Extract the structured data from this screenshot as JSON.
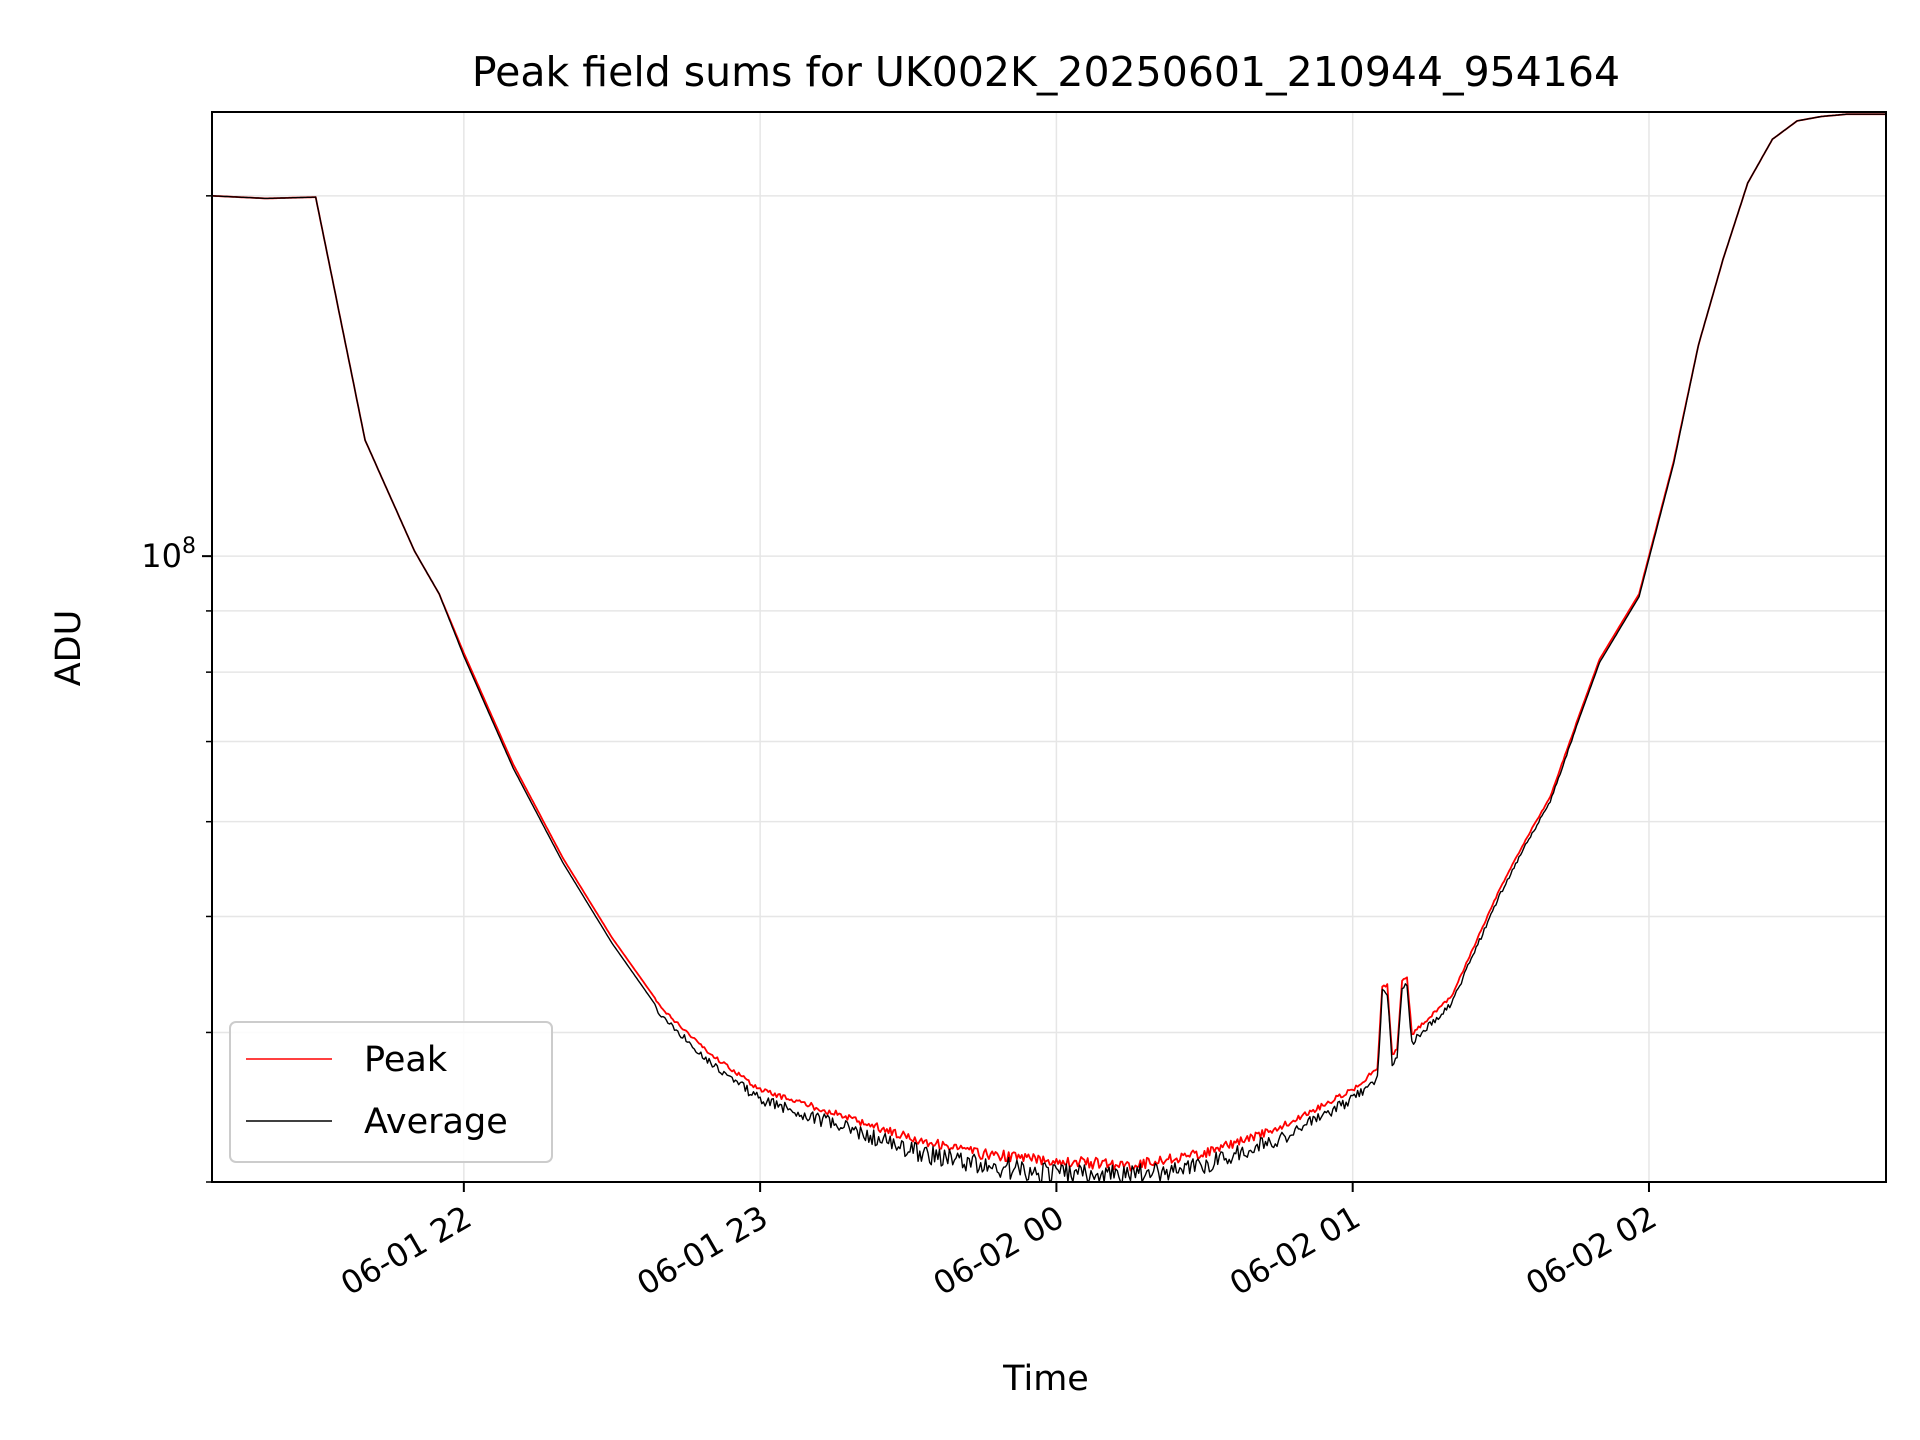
{
  "chart_data": {
    "type": "line",
    "title": "Peak field sums for UK002K_20250601_210944_954164",
    "xlabel": "Time",
    "ylabel": "ADU",
    "yscale": "log",
    "grid": true,
    "legend_position": "lower-left",
    "xlim": [
      "2025-06-01 21:09",
      "2025-06-02 02:48"
    ],
    "ylim": [
      30000000,
      235000000
    ],
    "x_ticks": [
      {
        "value": "2025-06-01 22:00",
        "label": "06-01 22"
      },
      {
        "value": "2025-06-01 23:00",
        "label": "06-01 23"
      },
      {
        "value": "2025-06-02 00:00",
        "label": "06-02 00"
      },
      {
        "value": "2025-06-02 01:00",
        "label": "06-02 01"
      },
      {
        "value": "2025-06-02 02:00",
        "label": "06-02 02"
      }
    ],
    "y_major_ticks": [
      {
        "value": 100000000,
        "base": "10",
        "exponent": "8"
      }
    ],
    "y_minor_ticks": [
      30000000,
      40000000,
      50000000,
      60000000,
      70000000,
      80000000,
      90000000,
      200000000
    ],
    "series": [
      {
        "name": "Peak",
        "color": "#ff0000",
        "x": [
          "2025-06-01 21:09",
          "2025-06-01 21:20",
          "2025-06-01 21:30",
          "2025-06-01 21:40",
          "2025-06-01 21:50",
          "2025-06-01 21:55",
          "2025-06-01 22:00",
          "2025-06-01 22:10",
          "2025-06-01 22:20",
          "2025-06-01 22:30",
          "2025-06-01 22:40",
          "2025-06-01 22:50",
          "2025-06-01 23:00",
          "2025-06-01 23:15",
          "2025-06-01 23:30",
          "2025-06-01 23:45",
          "2025-06-02 00:00",
          "2025-06-02 00:15",
          "2025-06-02 00:30",
          "2025-06-02 00:45",
          "2025-06-02 01:00",
          "2025-06-02 01:05",
          "2025-06-02 01:06",
          "2025-06-02 01:07",
          "2025-06-02 01:08",
          "2025-06-02 01:09",
          "2025-06-02 01:10",
          "2025-06-02 01:11",
          "2025-06-02 01:12",
          "2025-06-02 01:20",
          "2025-06-02 01:30",
          "2025-06-02 01:35",
          "2025-06-02 01:40",
          "2025-06-02 01:45",
          "2025-06-02 01:50",
          "2025-06-02 01:58",
          "2025-06-02 02:05",
          "2025-06-02 02:10",
          "2025-06-02 02:15",
          "2025-06-02 02:20",
          "2025-06-02 02:25",
          "2025-06-02 02:30",
          "2025-06-02 02:35",
          "2025-06-02 02:40",
          "2025-06-02 02:48"
        ],
        "values": [
          200000000,
          199000000,
          199500000,
          125000000,
          101000000,
          93000000,
          83000000,
          67000000,
          56000000,
          48000000,
          42000000,
          38500000,
          36000000,
          34500000,
          33000000,
          32000000,
          31600000,
          31300000,
          32000000,
          33500000,
          36000000,
          37500000,
          44000000,
          44000000,
          38500000,
          38800000,
          44500000,
          44500000,
          40000000,
          43000000,
          53000000,
          58000000,
          63000000,
          72000000,
          82000000,
          93000000,
          120000000,
          150000000,
          177000000,
          205000000,
          223000000,
          231000000,
          233000000,
          234000000,
          234000000
        ]
      },
      {
        "name": "Average",
        "color": "#000000",
        "x": [
          "2025-06-01 21:09",
          "2025-06-01 21:20",
          "2025-06-01 21:30",
          "2025-06-01 21:40",
          "2025-06-01 21:50",
          "2025-06-01 21:55",
          "2025-06-01 22:00",
          "2025-06-01 22:10",
          "2025-06-01 22:20",
          "2025-06-01 22:30",
          "2025-06-01 22:40",
          "2025-06-01 22:50",
          "2025-06-01 23:00",
          "2025-06-01 23:15",
          "2025-06-01 23:30",
          "2025-06-01 23:45",
          "2025-06-02 00:00",
          "2025-06-02 00:15",
          "2025-06-02 00:30",
          "2025-06-02 00:45",
          "2025-06-02 01:00",
          "2025-06-02 01:05",
          "2025-06-02 01:06",
          "2025-06-02 01:07",
          "2025-06-02 01:08",
          "2025-06-02 01:09",
          "2025-06-02 01:10",
          "2025-06-02 01:11",
          "2025-06-02 01:12",
          "2025-06-02 01:20",
          "2025-06-02 01:30",
          "2025-06-02 01:35",
          "2025-06-02 01:40",
          "2025-06-02 01:45",
          "2025-06-02 01:50",
          "2025-06-02 01:58",
          "2025-06-02 02:05",
          "2025-06-02 02:10",
          "2025-06-02 02:15",
          "2025-06-02 02:20",
          "2025-06-02 02:25",
          "2025-06-02 02:30",
          "2025-06-02 02:35",
          "2025-06-02 02:40",
          "2025-06-02 02:48"
        ],
        "values": [
          200000000,
          199000000,
          199500000,
          125000000,
          101000000,
          93000000,
          82500000,
          66500000,
          55500000,
          47500000,
          41500000,
          38000000,
          35500000,
          34000000,
          32500000,
          31600000,
          31200000,
          31000000,
          31600000,
          33000000,
          35500000,
          37000000,
          43500000,
          43500000,
          38000000,
          38300000,
          44000000,
          44000000,
          39500000,
          42500000,
          52500000,
          57500000,
          62500000,
          71500000,
          81500000,
          92500000,
          119500000,
          150000000,
          177000000,
          205000000,
          223000000,
          231000000,
          233000000,
          234000000,
          234000000
        ]
      }
    ]
  }
}
